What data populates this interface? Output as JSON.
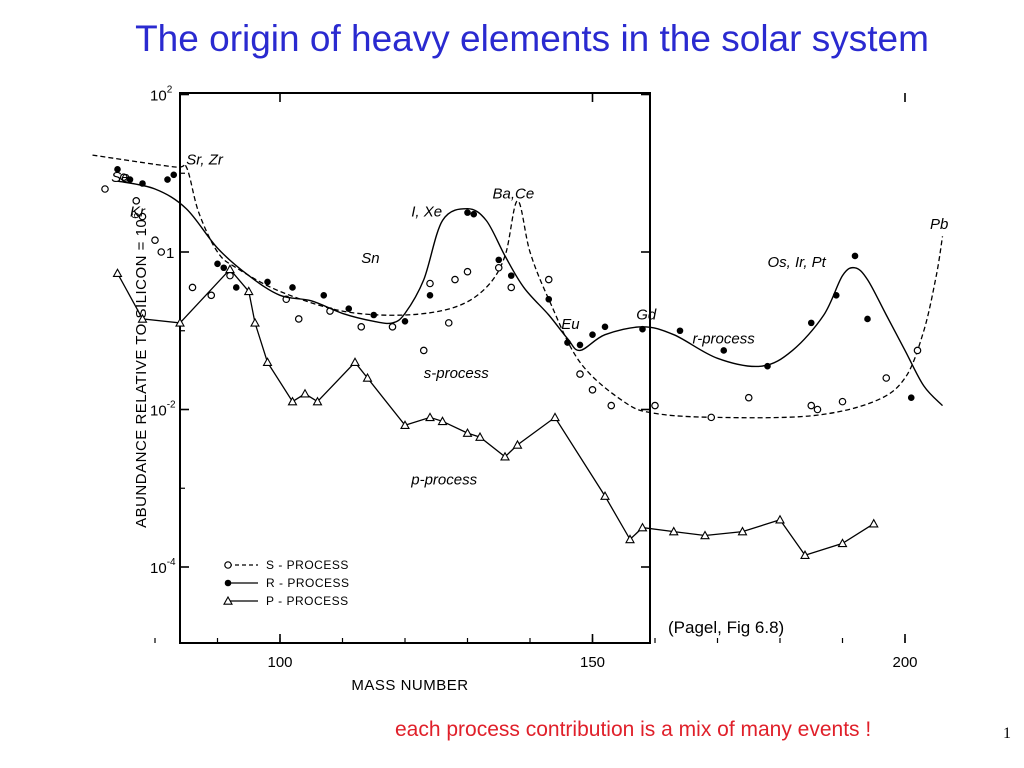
{
  "slide": {
    "title": "The origin of heavy elements in the solar system",
    "citation": "(Pagel, Fig 6.8)",
    "footer": "each process contribution is a mix of many events !",
    "page_number": "1",
    "title_color": "#2a2ad0",
    "footer_color": "#e0202a"
  },
  "chart_data": {
    "type": "line",
    "xlabel": "MASS NUMBER",
    "ylabel": "ABUNDANCE RELATIVE TO SILICON = 10",
    "ylabel_exponent": "6",
    "x_range": [
      70,
      210
    ],
    "y_log_range": [
      -5,
      2
    ],
    "x_ticks": [
      {
        "value": 100,
        "label": "100"
      },
      {
        "value": 150,
        "label": "150"
      },
      {
        "value": 200,
        "label": "200"
      }
    ],
    "y_ticks": [
      {
        "value": 2,
        "base": "10",
        "exp": "2"
      },
      {
        "value": 0,
        "base": "1",
        "exp": ""
      },
      {
        "value": -2,
        "base": "10",
        "exp": "-2"
      },
      {
        "value": -4,
        "base": "10",
        "exp": "-4"
      }
    ],
    "legend": [
      {
        "label": "S - PROCESS",
        "marker": "open-circle",
        "line": "dashed"
      },
      {
        "label": "R - PROCESS",
        "marker": "filled-circle",
        "line": "solid"
      },
      {
        "label": "P - PROCESS",
        "marker": "open-triangle",
        "line": "solid"
      }
    ],
    "annotations": [
      {
        "text": "Sr, Zr",
        "x": 85,
        "y": 1.11
      },
      {
        "text": "Se",
        "x": 73,
        "y": 0.89
      },
      {
        "text": "Kr",
        "x": 76,
        "y": 0.45
      },
      {
        "text": "I, Xe",
        "x": 121,
        "y": 0.45
      },
      {
        "text": "Ba,Ce",
        "x": 134,
        "y": 0.68
      },
      {
        "text": "Sn",
        "x": 113,
        "y": -0.14
      },
      {
        "text": "Pb",
        "x": 204,
        "y": 0.29
      },
      {
        "text": "Os, Ir, Pt",
        "x": 178,
        "y": -0.19
      },
      {
        "text": "Eu",
        "x": 145,
        "y": -0.98
      },
      {
        "text": "Gd",
        "x": 157,
        "y": -0.86
      },
      {
        "text": "r-process",
        "x": 166,
        "y": -1.16
      },
      {
        "text": "s-process",
        "x": 123,
        "y": -1.6
      },
      {
        "text": "p-process",
        "x": 121,
        "y": -2.95
      }
    ],
    "series": [
      {
        "name": "S - PROCESS",
        "marker": "open-circle",
        "curve": [
          [
            70,
            1.23
          ],
          [
            83,
            1.08
          ],
          [
            85,
            1.08
          ],
          [
            87,
            0.5
          ],
          [
            90,
            0.0
          ],
          [
            93,
            -0.2
          ],
          [
            100,
            -0.5
          ],
          [
            110,
            -0.75
          ],
          [
            120,
            -0.8
          ],
          [
            128,
            -0.7
          ],
          [
            133,
            -0.45
          ],
          [
            136,
            -0.05
          ],
          [
            138,
            0.65
          ],
          [
            140,
            0.0
          ],
          [
            143,
            -0.6
          ],
          [
            148,
            -1.4
          ],
          [
            155,
            -1.9
          ],
          [
            160,
            -2.05
          ],
          [
            170,
            -2.1
          ],
          [
            185,
            -2.08
          ],
          [
            195,
            -1.9
          ],
          [
            200,
            -1.6
          ],
          [
            203,
            -1.0
          ],
          [
            205,
            -0.3
          ],
          [
            206,
            0.2
          ]
        ],
        "points": [
          [
            72,
            0.8
          ],
          [
            75,
            0.95
          ],
          [
            77,
            0.65
          ],
          [
            78,
            0.45
          ],
          [
            80,
            0.15
          ],
          [
            81,
            0.0
          ],
          [
            86,
            -0.45
          ],
          [
            89,
            -0.55
          ],
          [
            92,
            -0.3
          ],
          [
            101,
            -0.6
          ],
          [
            103,
            -0.85
          ],
          [
            108,
            -0.75
          ],
          [
            113,
            -0.95
          ],
          [
            118,
            -0.95
          ],
          [
            123,
            -1.25
          ],
          [
            124,
            -0.4
          ],
          [
            127,
            -0.9
          ],
          [
            128,
            -0.35
          ],
          [
            130,
            -0.25
          ],
          [
            135,
            -0.2
          ],
          [
            137,
            -0.45
          ],
          [
            143,
            -0.35
          ],
          [
            148,
            -1.55
          ],
          [
            150,
            -1.75
          ],
          [
            153,
            -1.95
          ],
          [
            160,
            -1.95
          ],
          [
            169,
            -2.1
          ],
          [
            175,
            -1.85
          ],
          [
            185,
            -1.95
          ],
          [
            186,
            -2.0
          ],
          [
            190,
            -1.9
          ],
          [
            197,
            -1.6
          ],
          [
            202,
            -1.25
          ]
        ]
      },
      {
        "name": "R - PROCESS",
        "marker": "filled-circle",
        "curve": [
          [
            74,
            0.9
          ],
          [
            80,
            0.8
          ],
          [
            85,
            0.55
          ],
          [
            90,
            0.05
          ],
          [
            95,
            -0.3
          ],
          [
            100,
            -0.55
          ],
          [
            105,
            -0.62
          ],
          [
            110,
            -0.78
          ],
          [
            115,
            -0.88
          ],
          [
            118,
            -0.9
          ],
          [
            120,
            -0.78
          ],
          [
            123,
            -0.35
          ],
          [
            126,
            0.4
          ],
          [
            130,
            0.55
          ],
          [
            133,
            0.4
          ],
          [
            136,
            -0.05
          ],
          [
            139,
            -0.45
          ],
          [
            143,
            -0.8
          ],
          [
            146,
            -1.1
          ],
          [
            148,
            -1.25
          ],
          [
            152,
            -1.05
          ],
          [
            158,
            -0.95
          ],
          [
            163,
            -1.05
          ],
          [
            170,
            -1.35
          ],
          [
            177,
            -1.45
          ],
          [
            182,
            -1.25
          ],
          [
            187,
            -0.8
          ],
          [
            190,
            -0.3
          ],
          [
            192,
            -0.2
          ],
          [
            194,
            -0.35
          ],
          [
            197,
            -0.8
          ],
          [
            200,
            -1.25
          ],
          [
            203,
            -1.7
          ],
          [
            206,
            -1.95
          ]
        ],
        "points": [
          [
            74,
            1.05
          ],
          [
            76,
            0.92
          ],
          [
            78,
            0.87
          ],
          [
            82,
            0.92
          ],
          [
            83,
            0.98
          ],
          [
            90,
            -0.15
          ],
          [
            91,
            -0.2
          ],
          [
            93,
            -0.45
          ],
          [
            98,
            -0.38
          ],
          [
            102,
            -0.45
          ],
          [
            107,
            -0.55
          ],
          [
            111,
            -0.72
          ],
          [
            115,
            -0.8
          ],
          [
            120,
            -0.88
          ],
          [
            124,
            -0.55
          ],
          [
            130,
            0.5
          ],
          [
            131,
            0.48
          ],
          [
            135,
            -0.1
          ],
          [
            137,
            -0.3
          ],
          [
            143,
            -0.6
          ],
          [
            146,
            -1.15
          ],
          [
            148,
            -1.18
          ],
          [
            150,
            -1.05
          ],
          [
            152,
            -0.95
          ],
          [
            158,
            -0.98
          ],
          [
            164,
            -1.0
          ],
          [
            171,
            -1.25
          ],
          [
            178,
            -1.45
          ],
          [
            185,
            -0.9
          ],
          [
            189,
            -0.55
          ],
          [
            192,
            -0.05
          ],
          [
            194,
            -0.85
          ],
          [
            201,
            -1.85
          ]
        ]
      },
      {
        "name": "P - PROCESS",
        "marker": "open-triangle",
        "curve": [],
        "points": [
          [
            74,
            -0.27
          ],
          [
            78,
            -0.85
          ],
          [
            84,
            -0.9
          ],
          [
            92,
            -0.22
          ],
          [
            95,
            -0.5
          ],
          [
            96,
            -0.9
          ],
          [
            98,
            -1.4
          ],
          [
            102,
            -1.9
          ],
          [
            104,
            -1.8
          ],
          [
            106,
            -1.9
          ],
          [
            112,
            -1.4
          ],
          [
            114,
            -1.6
          ],
          [
            120,
            -2.2
          ],
          [
            124,
            -2.1
          ],
          [
            126,
            -2.15
          ],
          [
            130,
            -2.3
          ],
          [
            132,
            -2.35
          ],
          [
            136,
            -2.6
          ],
          [
            138,
            -2.45
          ],
          [
            144,
            -2.1
          ],
          [
            152,
            -3.1
          ],
          [
            156,
            -3.65
          ],
          [
            158,
            -3.5
          ],
          [
            163,
            -3.55
          ],
          [
            168,
            -3.6
          ],
          [
            174,
            -3.55
          ],
          [
            180,
            -3.4
          ],
          [
            184,
            -3.85
          ],
          [
            190,
            -3.7
          ],
          [
            195,
            -3.45
          ]
        ]
      }
    ]
  }
}
